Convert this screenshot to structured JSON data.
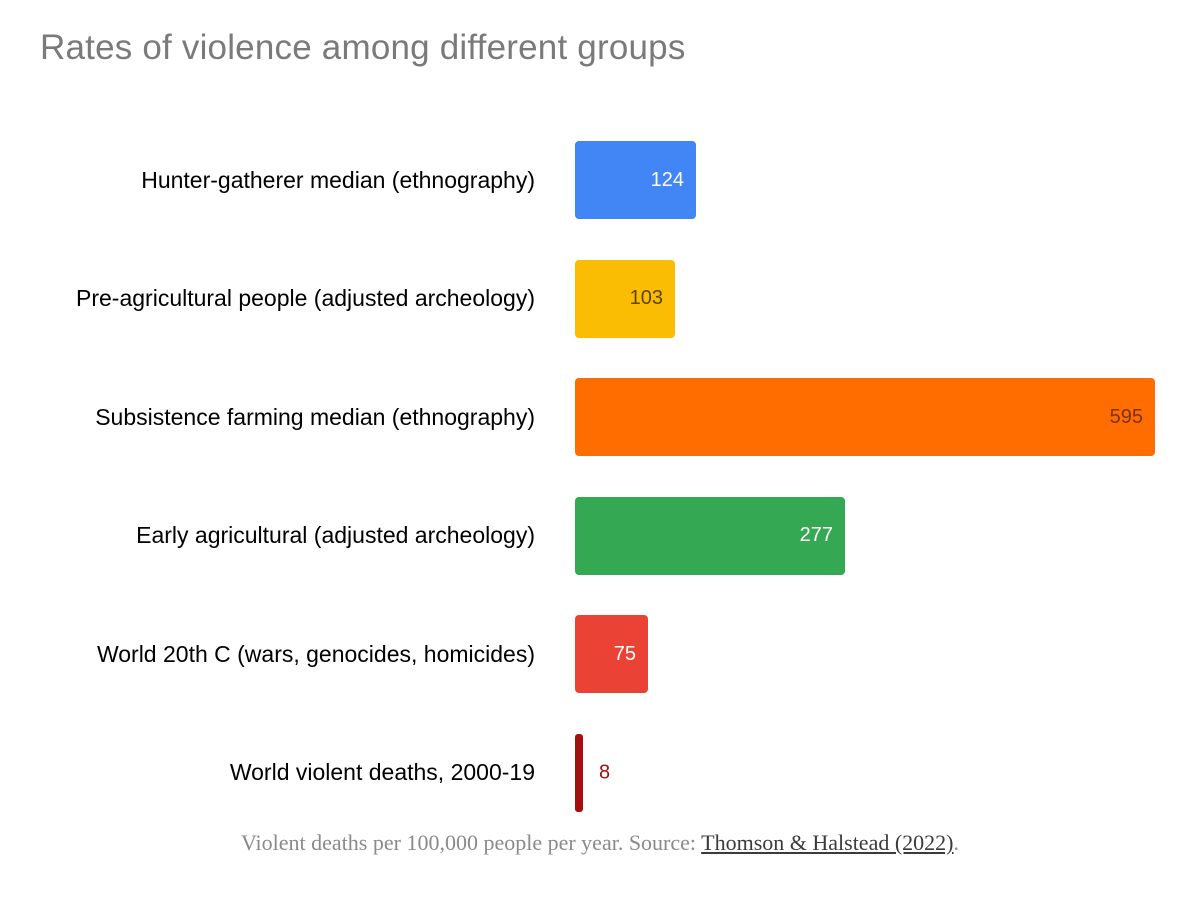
{
  "title": "Rates of violence among different groups",
  "caption": {
    "prefix": "Violent deaths per 100,000 people per year. Source: ",
    "link_text": "Thomson & Halstead (2022)",
    "suffix": "."
  },
  "colors": {
    "background": "#ffffff",
    "title_text": "#7a7a7a",
    "category_text": "#000000",
    "caption_text": "#8a8a8a",
    "caption_link": "#3b3b3b"
  },
  "chart_data": {
    "type": "bar",
    "orientation": "horizontal",
    "title": "Rates of violence among different groups",
    "xlabel": "Violent deaths per 100,000 people per year",
    "ylabel": "",
    "xlim": [
      0,
      640
    ],
    "grid": false,
    "legend": "none",
    "categories": [
      "Hunter-gatherer median (ethnography)",
      "Pre-agricultural people (adjusted archeology)",
      "Subsistence farming median (ethnography)",
      "Early agricultural (adjusted archeology)",
      "World 20th C (wars, genocides, homicides)",
      "World violent deaths, 2000-19"
    ],
    "values": [
      124,
      103,
      595,
      277,
      75,
      8
    ],
    "bars": [
      {
        "category": "Hunter-gatherer median (ethnography)",
        "value": 124,
        "color": "#4285F4",
        "value_label_color": "#ffffff",
        "value_label_position": "inside"
      },
      {
        "category": "Pre-agricultural people (adjusted archeology)",
        "value": 103,
        "color": "#FBBC04",
        "value_label_color": "#5e4400",
        "value_label_position": "inside"
      },
      {
        "category": "Subsistence farming median (ethnography)",
        "value": 595,
        "color": "#FF6D00",
        "value_label_color": "#7e3103",
        "value_label_position": "inside"
      },
      {
        "category": "Early agricultural (adjusted archeology)",
        "value": 277,
        "color": "#34A853",
        "value_label_color": "#ffffff",
        "value_label_position": "inside"
      },
      {
        "category": "World 20th C (wars, genocides, homicides)",
        "value": 75,
        "color": "#EA4335",
        "value_label_color": "#ffffff",
        "value_label_position": "inside"
      },
      {
        "category": "World violent deaths, 2000-19",
        "value": 8,
        "color": "#A50E0E",
        "value_label_color": "#A50E0E",
        "value_label_position": "outside"
      }
    ]
  }
}
